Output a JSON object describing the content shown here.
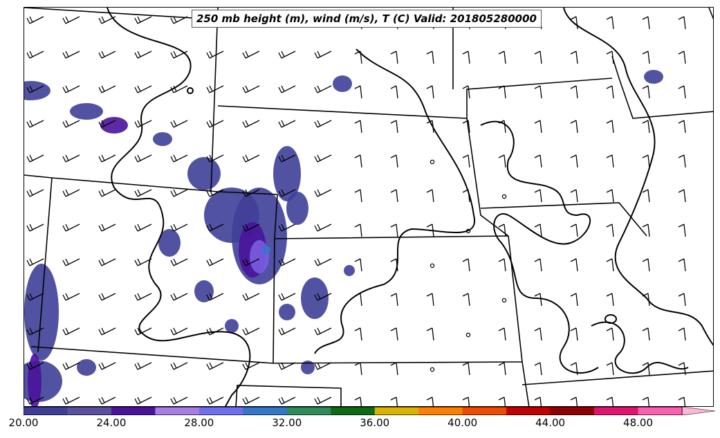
{
  "title": "250 mb height (m), wind (m/s), T (C) Valid: 201805280000",
  "colorbar": {
    "colors": [
      "#3f3f99",
      "#5b4f9f",
      "#4a139b",
      "#a77ee6",
      "#6f6ff2",
      "#3577c9",
      "#2e8c5a",
      "#0e6b14",
      "#d9b400",
      "#ff8000",
      "#ef4a00",
      "#c40000",
      "#8f0000",
      "#e0146e",
      "#ff5fb0"
    ],
    "extend_color": "#ffb6da",
    "min": 20,
    "max": 51.5,
    "ticks": [
      "20.00",
      "24.00",
      "28.00",
      "32.00",
      "36.00",
      "40.00",
      "44.00",
      "48.00"
    ],
    "tick_values": [
      20,
      24,
      28,
      32,
      36,
      40,
      44,
      48
    ]
  },
  "colors": {
    "border": "#000000",
    "speed_fill_low": "#3f3f99",
    "speed_fill_mid": "#4a139b",
    "speed_fill_high": "#7a5ce0",
    "speed_fill_core": "#3577c9"
  },
  "barb_icon": "wind-barb-icon"
}
